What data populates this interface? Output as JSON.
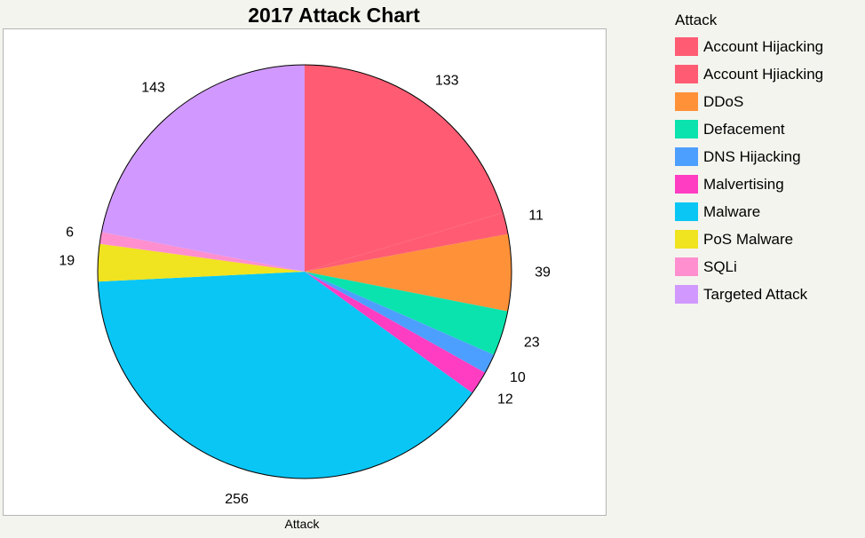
{
  "chart_data": {
    "type": "pie",
    "title": "2017 Attack Chart",
    "xlabel": "Attack",
    "legend_title": "Attack",
    "legend_position": "right",
    "categories": [
      "Account Hijacking",
      "Account Hjiacking",
      "DDoS",
      "Defacement",
      "DNS Hijacking",
      "Malvertising",
      "Malware",
      "PoS Malware",
      "SQLi",
      "Targeted Attack"
    ],
    "values": [
      133,
      11,
      39,
      23,
      10,
      12,
      256,
      19,
      6,
      143
    ],
    "colors": [
      "#ff5c73",
      "#ff5c73",
      "#ff9138",
      "#0ae3ad",
      "#4d9fff",
      "#ff3dc2",
      "#0ac6f5",
      "#f0e320",
      "#ff8fcf",
      "#d199ff"
    ]
  }
}
